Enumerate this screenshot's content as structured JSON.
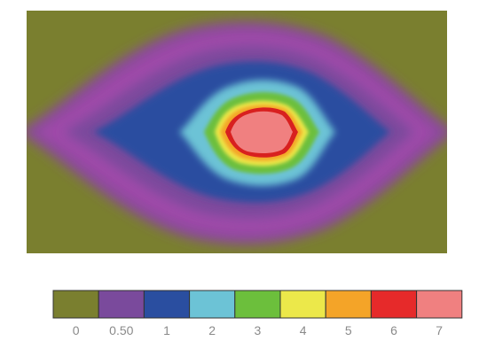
{
  "chart_data": {
    "type": "heatmap",
    "title": "",
    "xlabel": "",
    "ylabel": "",
    "colorbar": {
      "orientation": "horizontal",
      "placement": "bottom",
      "ticks": [
        "0",
        "0.50",
        "1",
        "2",
        "3",
        "4",
        "5",
        "6",
        "7"
      ],
      "colors": [
        "#7a7f2f",
        "#7a4a9c",
        "#2a4ea0",
        "#6cc3d6",
        "#6cbf3c",
        "#ece84a",
        "#f4a428",
        "#e62a2a",
        "#f08080"
      ]
    },
    "field": {
      "description_levels": [
        0,
        0.5,
        1,
        2,
        3,
        4,
        5,
        6,
        7
      ],
      "peak_value": 7,
      "background_value": 0,
      "pattern": "single central peak, diamond-shaped decay to edges"
    }
  }
}
